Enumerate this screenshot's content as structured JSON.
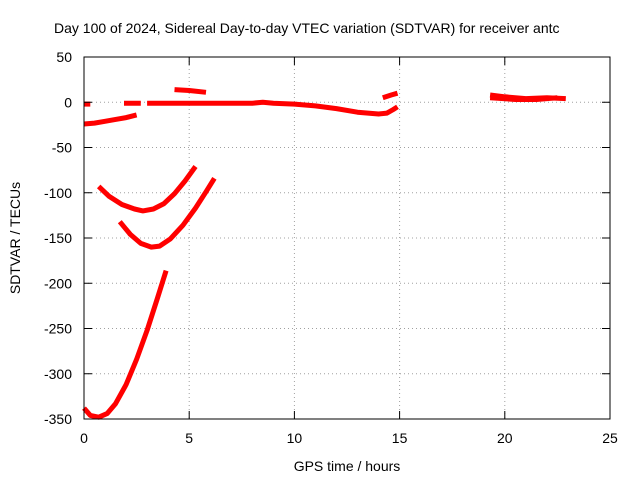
{
  "chart_data": {
    "type": "line",
    "title": "Day 100 of 2024, Sidereal Day-to-day VTEC variation (SDTVAR) for receiver antc",
    "xlabel": "GPS time / hours",
    "ylabel": "SDTVAR / TECUs",
    "xlim": [
      0,
      25
    ],
    "ylim": [
      -350,
      50
    ],
    "xticks": [
      0,
      5,
      10,
      15,
      20,
      25
    ],
    "yticks": [
      50,
      0,
      -50,
      -100,
      -150,
      -200,
      -250,
      -300,
      -350
    ],
    "grid": true,
    "color": "#ff0000",
    "series": [
      {
        "name": "seg-1",
        "x": [
          0.0,
          0.3
        ],
        "y": [
          -2,
          -2
        ]
      },
      {
        "name": "seg-2",
        "x": [
          0.0,
          0.5,
          1.0,
          1.5,
          2.0,
          2.5
        ],
        "y": [
          -24,
          -23,
          -21,
          -19,
          -17,
          -14
        ]
      },
      {
        "name": "seg-3",
        "x": [
          1.9,
          2.3,
          2.7
        ],
        "y": [
          -1,
          -1,
          -1
        ]
      },
      {
        "name": "seg-4",
        "x": [
          3.0,
          4.0,
          5.0,
          6.0,
          7.0,
          8.0,
          8.5,
          9.0,
          10.0,
          11.0,
          12.0,
          13.0,
          13.5,
          14.0,
          14.4,
          14.7,
          14.9
        ],
        "y": [
          -1,
          -1,
          -1,
          -1,
          -1,
          -1,
          0,
          -1,
          -2,
          -4,
          -7,
          -11,
          -12,
          -13,
          -12,
          -8,
          -5
        ]
      },
      {
        "name": "seg-5",
        "x": [
          4.3,
          5.0,
          5.8
        ],
        "y": [
          14,
          13,
          11
        ]
      },
      {
        "name": "seg-6",
        "x": [
          14.2,
          14.6,
          14.9
        ],
        "y": [
          5,
          8,
          10
        ]
      },
      {
        "name": "seg-7",
        "x": [
          19.3,
          20.0,
          21.0,
          22.0,
          22.9
        ],
        "y": [
          8,
          6,
          4,
          5,
          4
        ]
      },
      {
        "name": "seg-8",
        "x": [
          19.3,
          20.5,
          21.5,
          22.5
        ],
        "y": [
          5,
          3,
          3,
          5
        ]
      },
      {
        "name": "seg-9",
        "x": [
          0.7,
          1.2,
          1.8,
          2.4,
          2.8,
          3.3,
          3.8,
          4.3,
          4.8,
          5.3
        ],
        "y": [
          -93,
          -104,
          -113,
          -118,
          -120,
          -118,
          -112,
          -101,
          -87,
          -71
        ]
      },
      {
        "name": "seg-10",
        "x": [
          1.7,
          2.2,
          2.7,
          3.2,
          3.6,
          4.1,
          4.7,
          5.3,
          5.8,
          6.2
        ],
        "y": [
          -132,
          -146,
          -156,
          -160,
          -159,
          -151,
          -136,
          -117,
          -99,
          -84
        ]
      },
      {
        "name": "seg-11",
        "x": [
          0.0,
          0.3,
          0.7,
          1.1,
          1.5,
          2.0,
          2.5,
          3.0,
          3.5,
          3.9
        ],
        "y": [
          -338,
          -346,
          -348,
          -344,
          -333,
          -312,
          -284,
          -252,
          -216,
          -186
        ]
      }
    ]
  }
}
